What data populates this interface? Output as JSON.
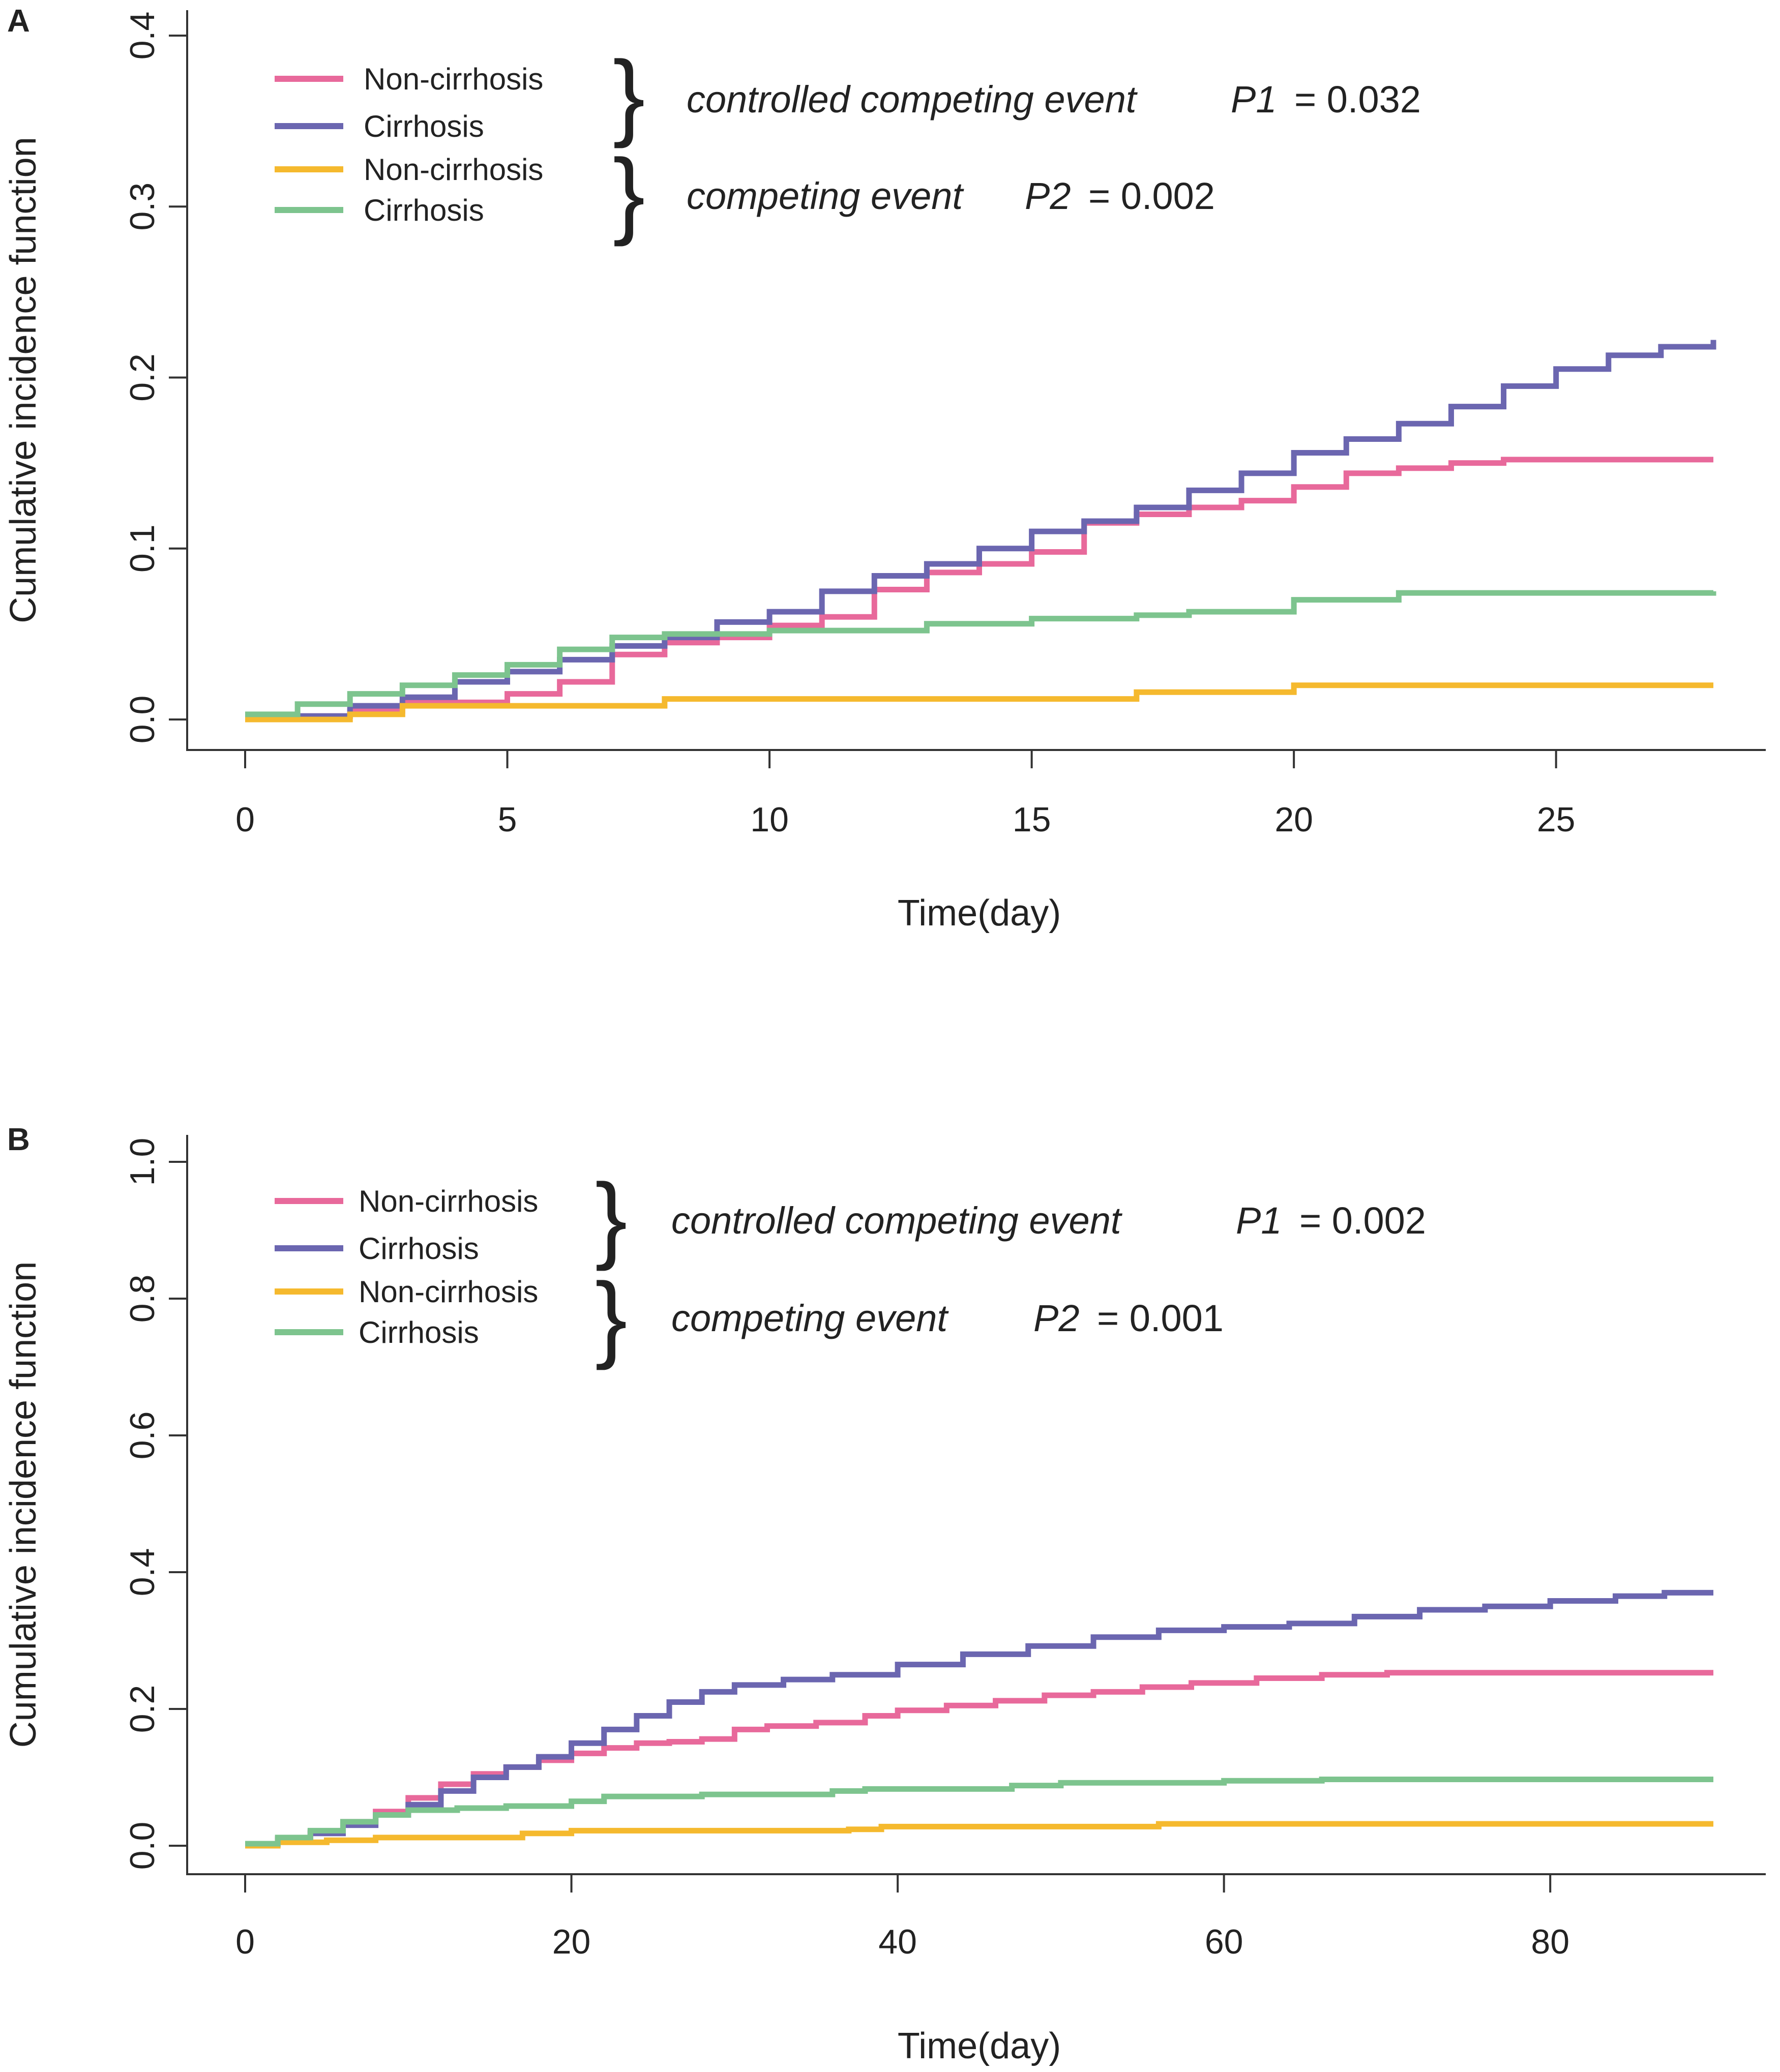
{
  "chart_data": [
    {
      "type": "line",
      "panel": "A",
      "xlabel": "Time(day)",
      "ylabel": "Cumulative incidence function",
      "xlim": [
        0,
        28
      ],
      "ylim": [
        0,
        0.4
      ],
      "xticks": [
        0,
        5,
        10,
        15,
        20,
        25
      ],
      "yticks": [
        0.0,
        0.1,
        0.2,
        0.3,
        0.4
      ],
      "xtick_labels": [
        "0",
        "5",
        "10",
        "15",
        "20",
        "25"
      ],
      "ytick_labels": [
        "0.0",
        "0.1",
        "0.2",
        "0.3",
        "0.4"
      ],
      "legend": {
        "groups": [
          {
            "entries": [
              {
                "label": "Non-cirrhosis",
                "color": "#E8699B"
              },
              {
                "label": "Cirrhosis",
                "color": "#6B66B0"
              }
            ],
            "event": "controlled competing event",
            "p_name": "P1",
            "p_value": "= 0.032"
          },
          {
            "entries": [
              {
                "label": "Non-cirrhosis",
                "color": "#F5B92E"
              },
              {
                "label": "Cirrhosis",
                "color": "#7DC48E"
              }
            ],
            "event": "competing event",
            "p_name": "P2",
            "p_value": "= 0.002"
          }
        ]
      },
      "series": [
        {
          "name": "Non-cirrhosis (controlled competing event)",
          "color": "#E8699B",
          "x": [
            0,
            2,
            3,
            5,
            6,
            7,
            8,
            9,
            10,
            11,
            12,
            13,
            14,
            15,
            16,
            17,
            18,
            19,
            20,
            21,
            22,
            23,
            24,
            25,
            26,
            27,
            28
          ],
          "y": [
            0.002,
            0.005,
            0.01,
            0.015,
            0.022,
            0.038,
            0.045,
            0.048,
            0.055,
            0.06,
            0.076,
            0.086,
            0.091,
            0.098,
            0.115,
            0.12,
            0.124,
            0.128,
            0.136,
            0.144,
            0.147,
            0.15,
            0.152,
            0.152,
            0.152,
            0.152,
            0.152
          ]
        },
        {
          "name": "Cirrhosis (controlled competing event)",
          "color": "#6B66B0",
          "x": [
            0,
            2,
            3,
            4,
            5,
            6,
            7,
            8,
            9,
            10,
            11,
            12,
            13,
            14,
            15,
            16,
            17,
            18,
            19,
            20,
            21,
            22,
            23,
            24,
            25,
            26,
            27,
            28
          ],
          "y": [
            0.002,
            0.008,
            0.013,
            0.022,
            0.028,
            0.035,
            0.043,
            0.048,
            0.057,
            0.063,
            0.075,
            0.084,
            0.091,
            0.1,
            0.11,
            0.116,
            0.124,
            0.134,
            0.144,
            0.156,
            0.164,
            0.173,
            0.183,
            0.195,
            0.205,
            0.213,
            0.218,
            0.222
          ]
        },
        {
          "name": "Non-cirrhosis (competing event)",
          "color": "#F5B92E",
          "x": [
            0,
            2,
            3,
            8,
            17,
            20,
            28
          ],
          "y": [
            0.0,
            0.003,
            0.008,
            0.012,
            0.016,
            0.02,
            0.02
          ]
        },
        {
          "name": "Cirrhosis (competing event)",
          "color": "#7DC48E",
          "x": [
            0,
            1,
            2,
            3,
            4,
            5,
            6,
            7,
            8,
            10,
            13,
            15,
            17,
            18,
            20,
            22,
            28
          ],
          "y": [
            0.003,
            0.009,
            0.015,
            0.02,
            0.026,
            0.032,
            0.041,
            0.048,
            0.05,
            0.052,
            0.056,
            0.059,
            0.061,
            0.063,
            0.07,
            0.074,
            0.075
          ]
        }
      ]
    },
    {
      "type": "line",
      "panel": "B",
      "xlabel": "Time(day)",
      "ylabel": "Cumulative incidence function",
      "xlim": [
        0,
        90
      ],
      "ylim": [
        0,
        1.0
      ],
      "xticks": [
        0,
        20,
        40,
        60,
        80
      ],
      "yticks": [
        0.0,
        0.2,
        0.4,
        0.6,
        0.8,
        1.0
      ],
      "xtick_labels": [
        "0",
        "20",
        "40",
        "60",
        "80"
      ],
      "ytick_labels": [
        "0.0",
        "0.2",
        "0.4",
        "0.6",
        "0.8",
        "1.0"
      ],
      "legend": {
        "groups": [
          {
            "entries": [
              {
                "label": "Non-cirrhosis",
                "color": "#E8699B"
              },
              {
                "label": "Cirrhosis",
                "color": "#6B66B0"
              }
            ],
            "event": "controlled competing event",
            "p_name": "P1",
            "p_value": "= 0.002"
          },
          {
            "entries": [
              {
                "label": "Non-cirrhosis",
                "color": "#F5B92E"
              },
              {
                "label": "Cirrhosis",
                "color": "#7DC48E"
              }
            ],
            "event": "competing event",
            "p_name": "P2",
            "p_value": "= 0.001"
          }
        ]
      },
      "series": [
        {
          "name": "Non-cirrhosis (controlled competing event)",
          "color": "#E8699B",
          "x": [
            0,
            2,
            4,
            6,
            8,
            10,
            12,
            14,
            16,
            18,
            20,
            22,
            24,
            26,
            28,
            30,
            32,
            35,
            38,
            40,
            43,
            46,
            49,
            52,
            55,
            58,
            62,
            66,
            70,
            80,
            90
          ],
          "y": [
            0.002,
            0.01,
            0.02,
            0.035,
            0.05,
            0.07,
            0.09,
            0.105,
            0.115,
            0.125,
            0.135,
            0.143,
            0.15,
            0.152,
            0.156,
            0.17,
            0.175,
            0.18,
            0.19,
            0.198,
            0.205,
            0.212,
            0.22,
            0.225,
            0.232,
            0.238,
            0.245,
            0.25,
            0.253,
            0.253,
            0.253
          ]
        },
        {
          "name": "Cirrhosis (controlled competing event)",
          "color": "#6B66B0",
          "x": [
            0,
            2,
            4,
            6,
            8,
            10,
            12,
            14,
            16,
            18,
            20,
            22,
            24,
            26,
            28,
            30,
            33,
            36,
            40,
            44,
            48,
            52,
            56,
            60,
            64,
            68,
            72,
            76,
            80,
            84,
            87,
            90
          ],
          "y": [
            0.002,
            0.008,
            0.018,
            0.03,
            0.045,
            0.06,
            0.08,
            0.1,
            0.115,
            0.13,
            0.15,
            0.17,
            0.19,
            0.21,
            0.225,
            0.235,
            0.243,
            0.25,
            0.265,
            0.28,
            0.292,
            0.305,
            0.315,
            0.32,
            0.325,
            0.335,
            0.345,
            0.35,
            0.358,
            0.365,
            0.37,
            0.37
          ]
        },
        {
          "name": "Non-cirrhosis (competing event)",
          "color": "#F5B92E",
          "x": [
            0,
            2,
            5,
            8,
            17,
            20,
            37,
            39,
            56,
            90
          ],
          "y": [
            0.0,
            0.005,
            0.008,
            0.012,
            0.018,
            0.022,
            0.024,
            0.028,
            0.032,
            0.032
          ]
        },
        {
          "name": "Cirrhosis (competing event)",
          "color": "#7DC48E",
          "x": [
            0,
            2,
            4,
            6,
            8,
            10,
            13,
            16,
            20,
            22,
            28,
            36,
            38,
            47,
            50,
            60,
            66,
            90
          ],
          "y": [
            0.003,
            0.012,
            0.022,
            0.035,
            0.045,
            0.052,
            0.055,
            0.058,
            0.065,
            0.072,
            0.075,
            0.08,
            0.083,
            0.088,
            0.092,
            0.095,
            0.097,
            0.097
          ]
        }
      ]
    }
  ]
}
